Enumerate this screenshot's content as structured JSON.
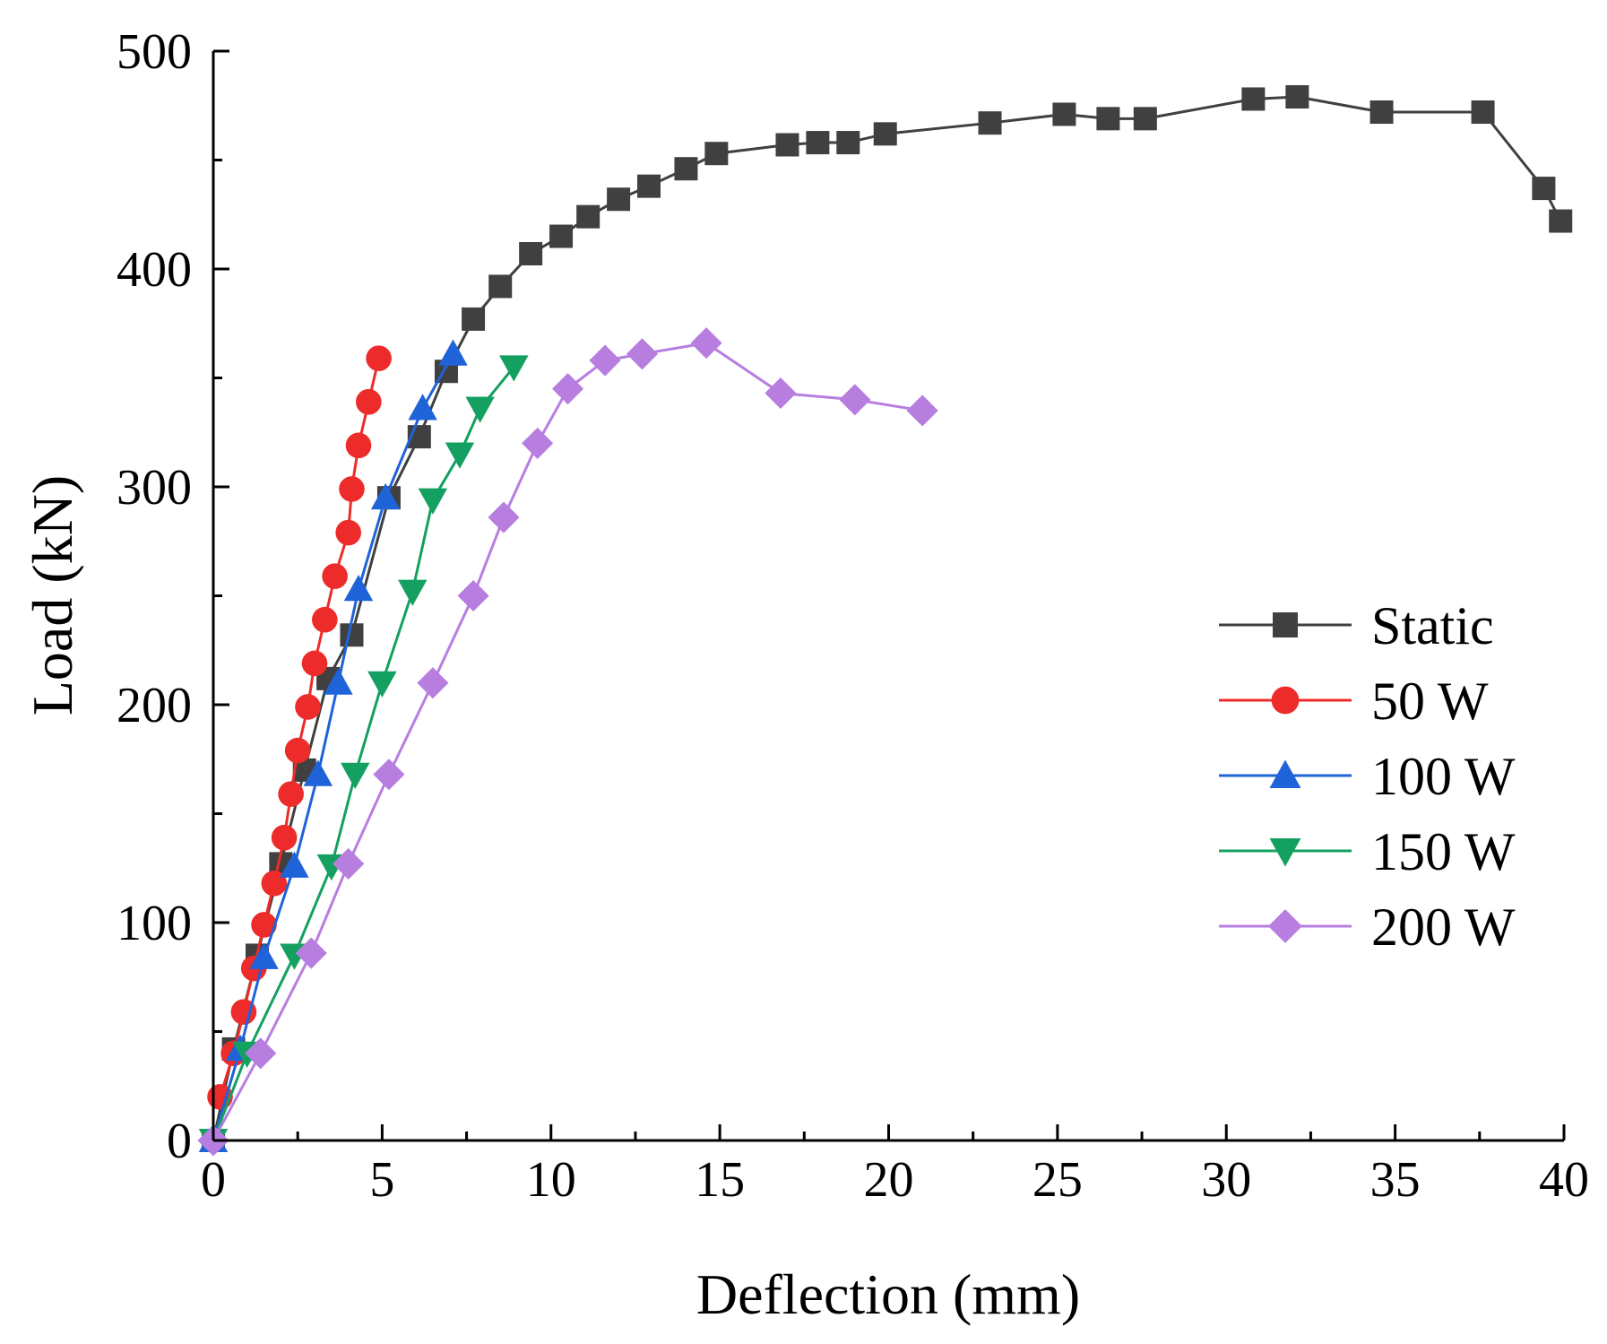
{
  "chart_data": {
    "type": "line",
    "title": "",
    "xlabel": "Deflection (mm)",
    "ylabel": "Load (kN)",
    "xlim": [
      0,
      40
    ],
    "ylim": [
      0,
      500
    ],
    "xticks": [
      0,
      5,
      10,
      15,
      20,
      25,
      30,
      35,
      40
    ],
    "yticks": [
      0,
      100,
      200,
      300,
      400,
      500
    ],
    "grid": false,
    "legend_position": "right",
    "series": [
      {
        "name": "Static",
        "color": "#404040",
        "marker": "square",
        "points": [
          [
            0,
            0
          ],
          [
            0.6,
            42
          ],
          [
            1.3,
            85
          ],
          [
            2.0,
            127
          ],
          [
            2.7,
            170
          ],
          [
            3.4,
            212
          ],
          [
            4.1,
            232
          ],
          [
            5.2,
            295
          ],
          [
            6.1,
            323
          ],
          [
            6.9,
            353
          ],
          [
            7.7,
            377
          ],
          [
            8.5,
            392
          ],
          [
            9.4,
            407
          ],
          [
            10.3,
            415
          ],
          [
            11.1,
            424
          ],
          [
            12.0,
            432
          ],
          [
            12.9,
            438
          ],
          [
            14.0,
            446
          ],
          [
            14.9,
            453
          ],
          [
            17.0,
            457
          ],
          [
            17.9,
            458
          ],
          [
            18.8,
            458
          ],
          [
            19.9,
            462
          ],
          [
            23.0,
            467
          ],
          [
            25.2,
            471
          ],
          [
            26.5,
            469
          ],
          [
            27.6,
            469
          ],
          [
            30.8,
            478
          ],
          [
            32.1,
            479
          ],
          [
            34.6,
            472
          ],
          [
            37.6,
            472
          ],
          [
            39.4,
            437
          ],
          [
            39.9,
            422
          ]
        ]
      },
      {
        "name": "50 W",
        "color": "#ee2b2b",
        "marker": "circle",
        "points": [
          [
            0.2,
            20
          ],
          [
            0.6,
            40
          ],
          [
            0.9,
            59
          ],
          [
            1.2,
            79
          ],
          [
            1.5,
            99
          ],
          [
            1.8,
            118
          ],
          [
            2.1,
            139
          ],
          [
            2.3,
            159
          ],
          [
            2.5,
            179
          ],
          [
            2.8,
            199
          ],
          [
            3.0,
            219
          ],
          [
            3.3,
            239
          ],
          [
            3.6,
            259
          ],
          [
            4.0,
            279
          ],
          [
            4.1,
            299
          ],
          [
            4.3,
            319
          ],
          [
            4.6,
            339
          ],
          [
            4.9,
            359
          ]
        ]
      },
      {
        "name": "100 W",
        "color": "#1e63d8",
        "marker": "triangle-up",
        "points": [
          [
            0,
            0
          ],
          [
            0.8,
            42
          ],
          [
            1.5,
            84
          ],
          [
            2.4,
            126
          ],
          [
            3.1,
            168
          ],
          [
            3.7,
            210
          ],
          [
            4.3,
            253
          ],
          [
            5.1,
            295
          ],
          [
            6.2,
            336
          ],
          [
            7.1,
            361
          ]
        ]
      },
      {
        "name": "150 W",
        "color": "#14a060",
        "marker": "triangle-down",
        "points": [
          [
            0,
            0
          ],
          [
            1.0,
            40
          ],
          [
            2.4,
            85
          ],
          [
            3.5,
            126
          ],
          [
            4.2,
            168
          ],
          [
            5.0,
            210
          ],
          [
            5.9,
            252
          ],
          [
            6.5,
            294
          ],
          [
            7.3,
            315
          ],
          [
            7.9,
            336
          ],
          [
            8.9,
            355
          ]
        ]
      },
      {
        "name": "200 W",
        "color": "#b77ee0",
        "marker": "diamond",
        "points": [
          [
            0,
            0
          ],
          [
            1.4,
            40
          ],
          [
            2.9,
            86
          ],
          [
            4.0,
            127
          ],
          [
            5.2,
            168
          ],
          [
            6.5,
            210
          ],
          [
            7.7,
            250
          ],
          [
            8.6,
            286
          ],
          [
            9.6,
            320
          ],
          [
            10.5,
            345
          ],
          [
            11.6,
            358
          ],
          [
            12.7,
            361
          ],
          [
            14.6,
            366
          ],
          [
            16.8,
            343
          ],
          [
            19.0,
            340
          ],
          [
            21.0,
            335
          ]
        ]
      }
    ]
  }
}
